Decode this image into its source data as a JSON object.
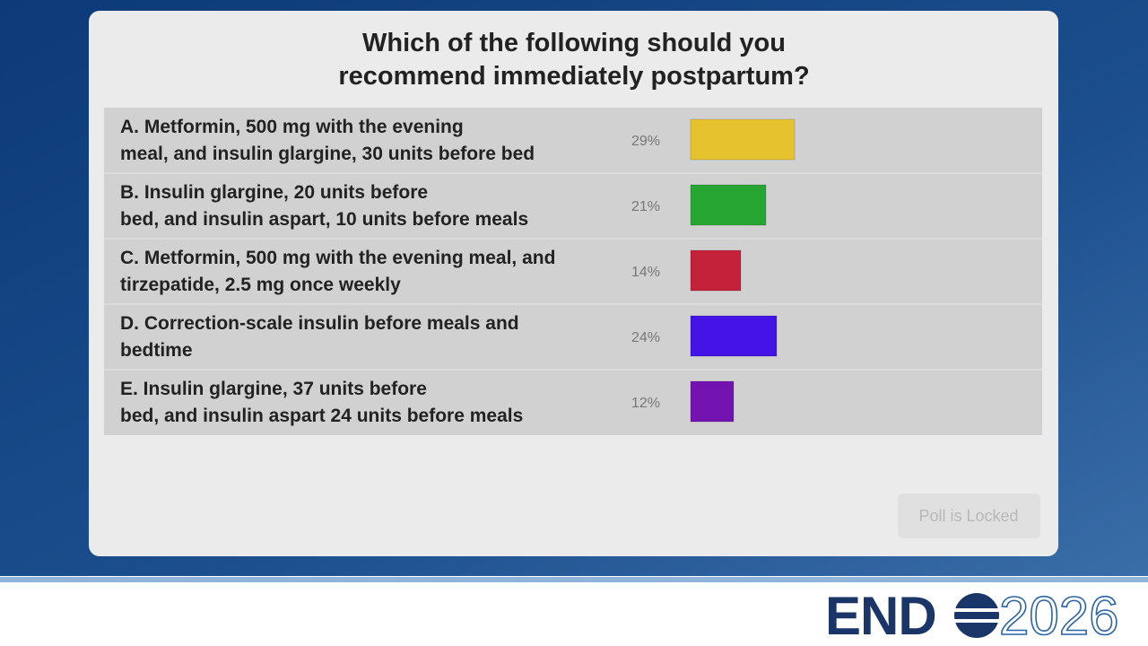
{
  "poll": {
    "question": [
      "Which of the following should you",
      "recommend immediately postpartum?"
    ],
    "options": [
      {
        "label": [
          "A. Metformin, 500 mg with the evening",
          "meal, and insulin glargine, 30 units before bed"
        ],
        "value": 29,
        "value_label": "29%",
        "color": "#e6c22f"
      },
      {
        "label": [
          "B. Insulin glargine, 20 units before",
          "bed, and insulin aspart, 10 units before meals"
        ],
        "value": 21,
        "value_label": "21%",
        "color": "#27a532"
      },
      {
        "label": [
          "C. Metformin, 500 mg with the evening meal, and",
          "tirzepatide, 2.5 mg once weekly"
        ],
        "value": 14,
        "value_label": "14%",
        "color": "#c4213a"
      },
      {
        "label": [
          "D. Correction-scale insulin before meals and",
          "bedtime"
        ],
        "value": 24,
        "value_label": "24%",
        "color": "#4414e6"
      },
      {
        "label": [
          "E. Insulin glargine, 37 units before",
          "bed, and insulin aspart 24 units before meals"
        ],
        "value": 12,
        "value_label": "12%",
        "color": "#7414b0"
      }
    ],
    "button": "Poll is Locked"
  },
  "logo": {
    "left": "END",
    "right": "2026"
  }
}
